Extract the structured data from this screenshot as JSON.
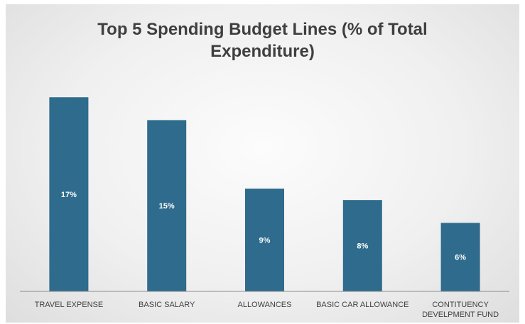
{
  "chart_data": {
    "type": "bar",
    "title_lines": [
      "Top 5 Spending Budget Lines (% of Total",
      "Expenditure)"
    ],
    "categories": [
      [
        "TRAVEL EXPENSE"
      ],
      [
        "BASIC SALARY"
      ],
      [
        "ALLOWANCES"
      ],
      [
        "BASIC CAR ALLOWANCE"
      ],
      [
        "CONTITUENCY",
        "DEVELPMENT FUND"
      ]
    ],
    "values": [
      17,
      15,
      9,
      8,
      6
    ],
    "value_labels": [
      "17%",
      "15%",
      "9%",
      "8%",
      "6%"
    ],
    "unit": "%",
    "ylim": [
      0,
      19
    ],
    "grid": false,
    "legend": "none",
    "bar_color": "#2e6b8c"
  }
}
